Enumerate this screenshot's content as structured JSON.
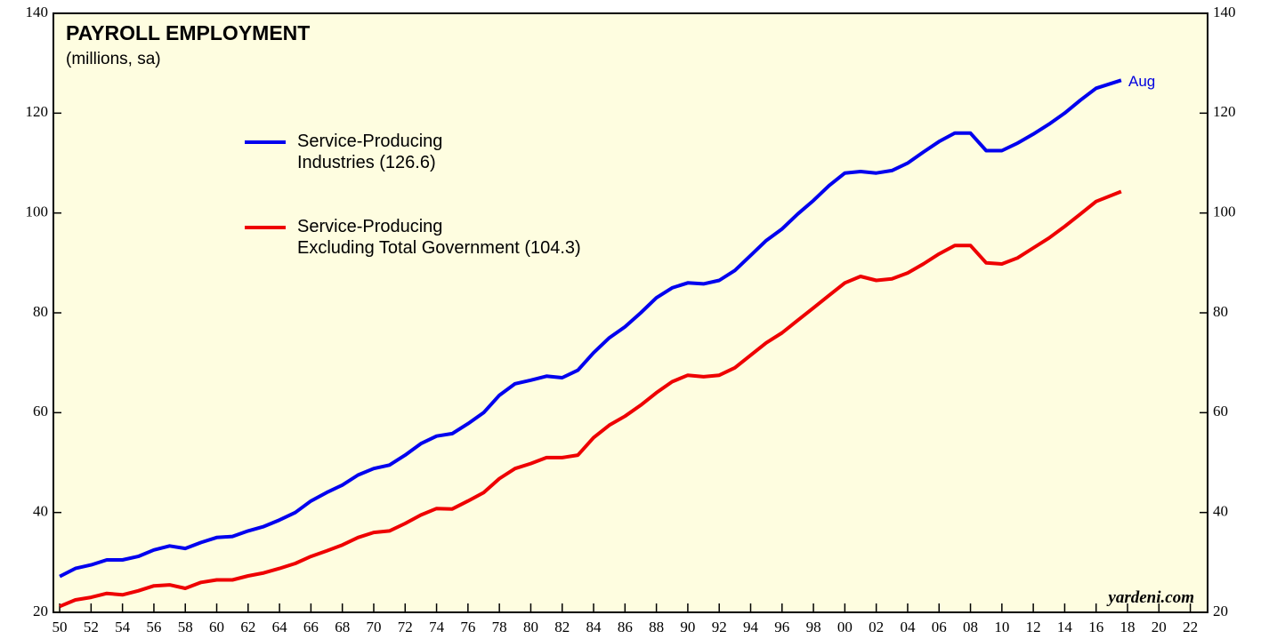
{
  "chart_data": {
    "type": "line",
    "title": "PAYROLL EMPLOYMENT",
    "subtitle": "(millions, sa)",
    "annotation": "Aug",
    "source": "yardeni.com",
    "x": [
      1950,
      1951,
      1952,
      1953,
      1954,
      1955,
      1956,
      1957,
      1958,
      1959,
      1960,
      1961,
      1962,
      1963,
      1964,
      1965,
      1966,
      1967,
      1968,
      1969,
      1970,
      1971,
      1972,
      1973,
      1974,
      1975,
      1976,
      1977,
      1978,
      1979,
      1980,
      1981,
      1982,
      1983,
      1984,
      1985,
      1986,
      1987,
      1988,
      1989,
      1990,
      1991,
      1992,
      1993,
      1994,
      1995,
      1996,
      1997,
      1998,
      1999,
      2000,
      2001,
      2002,
      2003,
      2004,
      2005,
      2006,
      2007,
      2008,
      2009,
      2010,
      2011,
      2012,
      2013,
      2014,
      2015,
      2016,
      2017.6
    ],
    "series": [
      {
        "name": "Service-Producing\nIndustries (126.6)",
        "color": "#0000ee",
        "values": [
          27.2,
          28.8,
          29.5,
          30.5,
          30.5,
          31.2,
          32.5,
          33.3,
          32.8,
          34.0,
          35.0,
          35.2,
          36.3,
          37.2,
          38.5,
          40.0,
          42.3,
          44.0,
          45.5,
          47.5,
          48.8,
          49.5,
          51.5,
          53.8,
          55.3,
          55.8,
          57.8,
          60.0,
          63.5,
          65.8,
          66.5,
          67.3,
          67.0,
          68.5,
          72.0,
          75.0,
          77.2,
          80.0,
          83.0,
          85.0,
          86.0,
          85.8,
          86.5,
          88.5,
          91.5,
          94.5,
          96.8,
          99.8,
          102.5,
          105.5,
          108.0,
          108.3,
          108.0,
          108.5,
          110.0,
          112.2,
          114.3,
          116.0,
          116.0,
          112.5,
          112.5,
          114.0,
          115.8,
          117.8,
          120.0,
          122.6,
          125.0,
          126.6
        ]
      },
      {
        "name": "Service-Producing\nExcluding Total Government (104.3)",
        "color": "#ee0000",
        "values": [
          21.2,
          22.5,
          23.0,
          23.8,
          23.5,
          24.3,
          25.3,
          25.5,
          24.8,
          26.0,
          26.5,
          26.5,
          27.3,
          27.9,
          28.8,
          29.8,
          31.2,
          32.3,
          33.5,
          35.0,
          36.0,
          36.3,
          37.8,
          39.5,
          40.8,
          40.7,
          42.3,
          44.0,
          46.8,
          48.8,
          49.8,
          51.0,
          51.0,
          51.5,
          55.0,
          57.5,
          59.3,
          61.5,
          64.0,
          66.2,
          67.5,
          67.2,
          67.5,
          69.0,
          71.5,
          74.0,
          76.0,
          78.5,
          81.0,
          83.5,
          86.0,
          87.3,
          86.5,
          86.8,
          88.0,
          89.8,
          91.8,
          93.5,
          93.5,
          90.0,
          89.8,
          91.0,
          93.0,
          95.0,
          97.3,
          99.8,
          102.3,
          104.3
        ]
      }
    ],
    "xlim": [
      1949.6,
      2023.1
    ],
    "xticks": [
      {
        "value": 1950,
        "label": "50"
      },
      {
        "value": 1952,
        "label": "52"
      },
      {
        "value": 1954,
        "label": "54"
      },
      {
        "value": 1956,
        "label": "56"
      },
      {
        "value": 1958,
        "label": "58"
      },
      {
        "value": 1960,
        "label": "60"
      },
      {
        "value": 1962,
        "label": "62"
      },
      {
        "value": 1964,
        "label": "64"
      },
      {
        "value": 1966,
        "label": "66"
      },
      {
        "value": 1968,
        "label": "68"
      },
      {
        "value": 1970,
        "label": "70"
      },
      {
        "value": 1972,
        "label": "72"
      },
      {
        "value": 1974,
        "label": "74"
      },
      {
        "value": 1976,
        "label": "76"
      },
      {
        "value": 1978,
        "label": "78"
      },
      {
        "value": 1980,
        "label": "80"
      },
      {
        "value": 1982,
        "label": "82"
      },
      {
        "value": 1984,
        "label": "84"
      },
      {
        "value": 1986,
        "label": "86"
      },
      {
        "value": 1988,
        "label": "88"
      },
      {
        "value": 1990,
        "label": "90"
      },
      {
        "value": 1992,
        "label": "92"
      },
      {
        "value": 1994,
        "label": "94"
      },
      {
        "value": 1996,
        "label": "96"
      },
      {
        "value": 1998,
        "label": "98"
      },
      {
        "value": 2000,
        "label": "00"
      },
      {
        "value": 2002,
        "label": "02"
      },
      {
        "value": 2004,
        "label": "04"
      },
      {
        "value": 2006,
        "label": "06"
      },
      {
        "value": 2008,
        "label": "08"
      },
      {
        "value": 2010,
        "label": "10"
      },
      {
        "value": 2012,
        "label": "12"
      },
      {
        "value": 2014,
        "label": "14"
      },
      {
        "value": 2016,
        "label": "16"
      },
      {
        "value": 2018,
        "label": "18"
      },
      {
        "value": 2020,
        "label": "20"
      },
      {
        "value": 2022,
        "label": "22"
      }
    ],
    "ylim": [
      20,
      140
    ],
    "yticks": [
      20,
      40,
      60,
      80,
      100,
      120,
      140
    ],
    "y2lim": [
      20,
      140
    ],
    "y2ticks": [
      20,
      40,
      60,
      80,
      100,
      120,
      140
    ],
    "background": "#fefde0",
    "grid": false
  }
}
